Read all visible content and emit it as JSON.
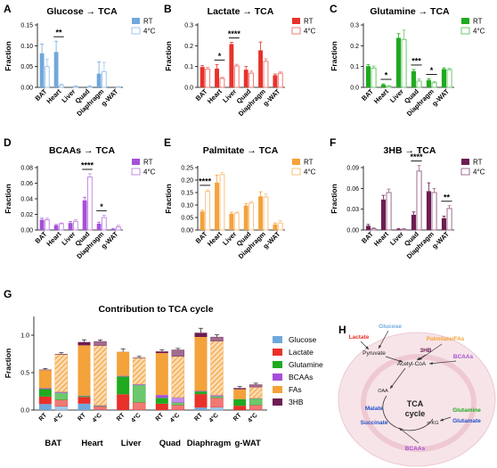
{
  "colors": {
    "glucose": "#6fa8dc",
    "lactate": "#e8312a",
    "glutamine": "#1faa1f",
    "bcaas": "#a64fd9",
    "fas": "#f4a23a",
    "hb": "#6d1d52"
  },
  "rt_label": "RT",
  "cold_label": "4°C",
  "tissues": [
    "BAT",
    "Heart",
    "Liver",
    "Quad",
    "Diaphragm",
    "g-WAT"
  ],
  "chart_data": [
    {
      "letter": "A",
      "title": "Glucose → TCA",
      "type": "bar",
      "color_key": "glucose",
      "ylabel": "Fraction",
      "ylim": [
        0,
        0.15
      ],
      "yticks": [
        "0.00",
        "0.05",
        "0.10",
        "0.15"
      ],
      "rt": [
        0.082,
        0.085,
        0,
        0,
        0.033,
        0
      ],
      "rt_err": [
        0.022,
        0.026,
        0,
        0,
        0.028,
        0
      ],
      "cold": [
        0.05,
        0.005,
        0.002,
        0.002,
        0.038,
        0.001
      ],
      "cold_err": [
        0.018,
        0.003,
        0.002,
        0.002,
        0.022,
        0.001
      ],
      "sig": [
        {
          "index": 1,
          "label": "**"
        }
      ]
    },
    {
      "letter": "B",
      "title": "Lactate → TCA",
      "type": "bar",
      "color_key": "lactate",
      "ylabel": "Fraction",
      "ylim": [
        0,
        0.3
      ],
      "yticks": [
        "0.0",
        "0.1",
        "0.2",
        "0.3"
      ],
      "rt": [
        0.098,
        0.09,
        0.208,
        0.085,
        0.178,
        0.058
      ],
      "rt_err": [
        0.007,
        0.02,
        0.008,
        0.015,
        0.04,
        0.006
      ],
      "cold": [
        0.088,
        0.043,
        0.103,
        0.068,
        0.125,
        0.068
      ],
      "cold_err": [
        0.008,
        0.005,
        0.008,
        0.01,
        0.012,
        0.006
      ],
      "sig": [
        {
          "index": 1,
          "label": "*"
        },
        {
          "index": 2,
          "label": "****"
        }
      ]
    },
    {
      "letter": "C",
      "title": "Glutamine → TCA",
      "type": "bar",
      "color_key": "glutamine",
      "ylabel": "Fraction",
      "ylim": [
        0,
        0.3
      ],
      "yticks": [
        "0.0",
        "0.1",
        "0.2",
        "0.3"
      ],
      "rt": [
        0.102,
        0.013,
        0.238,
        0.078,
        0.035,
        0.088
      ],
      "rt_err": [
        0.007,
        0.004,
        0.02,
        0.008,
        0.006,
        0.006
      ],
      "cold": [
        0.093,
        0.006,
        0.23,
        0.03,
        0.022,
        0.085
      ],
      "cold_err": [
        0.01,
        0.002,
        0.045,
        0.01,
        0.005,
        0.006
      ],
      "sig": [
        {
          "index": 1,
          "label": "*"
        },
        {
          "index": 3,
          "label": "***"
        },
        {
          "index": 4,
          "label": "*"
        }
      ]
    },
    {
      "letter": "D",
      "title": "BCAAs → TCA",
      "type": "bar",
      "color_key": "bcaas",
      "ylabel": "Fraction",
      "ylim": [
        0,
        0.08
      ],
      "yticks": [
        "0.00",
        "0.02",
        "0.04",
        "0.06",
        "0.08"
      ],
      "rt": [
        0.013,
        0.006,
        0.009,
        0.038,
        0.008,
        0.001
      ],
      "rt_err": [
        0.002,
        0.001,
        0.002,
        0.004,
        0.002,
        0.001
      ],
      "cold": [
        0.013,
        0.008,
        0.011,
        0.068,
        0.016,
        0.004
      ],
      "cold_err": [
        0.002,
        0.001,
        0.002,
        0.004,
        0.003,
        0.002
      ],
      "sig": [
        {
          "index": 3,
          "label": "****"
        },
        {
          "index": 4,
          "label": "*"
        }
      ]
    },
    {
      "letter": "E",
      "title": "Palmitate → TCA",
      "type": "bar",
      "color_key": "fas",
      "ylabel": "Fraction",
      "ylim": [
        0,
        0.25
      ],
      "yticks": [
        "0.00",
        "0.05",
        "0.10",
        "0.15",
        "0.20",
        "0.25"
      ],
      "rt": [
        0.074,
        0.19,
        0.065,
        0.098,
        0.135,
        0.022
      ],
      "rt_err": [
        0.005,
        0.03,
        0.006,
        0.008,
        0.018,
        0.006
      ],
      "cold": [
        0.155,
        0.222,
        0.068,
        0.108,
        0.132,
        0.028
      ],
      "cold_err": [
        0.006,
        0.008,
        0.004,
        0.006,
        0.012,
        0.01
      ],
      "sig": [
        {
          "index": 0,
          "label": "****"
        }
      ]
    },
    {
      "letter": "F",
      "title": "3HB → TCA",
      "type": "bar",
      "color_key": "hb",
      "ylabel": "Fraction",
      "ylim": [
        0,
        0.09
      ],
      "yticks": [
        "0.00",
        "0.03",
        "0.06",
        "0.09"
      ],
      "rt": [
        0.006,
        0.044,
        0.001,
        0.022,
        0.056,
        0.017
      ],
      "rt_err": [
        0.002,
        0.006,
        0.001,
        0.004,
        0.012,
        0.003
      ],
      "cold": [
        0.002,
        0.054,
        0.001,
        0.085,
        0.054,
        0.031
      ],
      "cold_err": [
        0.001,
        0.005,
        0.001,
        0.008,
        0.006,
        0.004
      ],
      "sig": [
        {
          "index": 3,
          "label": "****"
        },
        {
          "index": 5,
          "label": "**"
        }
      ]
    },
    {
      "letter": "G",
      "title": "Contribution to TCA cycle",
      "type": "bar",
      "stacked": true,
      "ylabel": "Fraction",
      "ylim": [
        0,
        1.25
      ],
      "yticks": [
        "0.0",
        "0.5",
        "1.0"
      ],
      "legend": [
        "Glucose",
        "Lactate",
        "Glutamine",
        "BCAAs",
        "FAs",
        "3HB"
      ],
      "legend_keys": [
        "glucose",
        "lactate",
        "glutamine",
        "bcaas",
        "fas",
        "hb"
      ],
      "bar_labels": [
        "RT",
        "4°C"
      ],
      "stacks_rt": [
        [
          0.08,
          0.1,
          0.1,
          0.013,
          0.24,
          0.007
        ],
        [
          0.085,
          0.09,
          0.013,
          0.006,
          0.67,
          0.044
        ],
        [
          0,
          0.21,
          0.238,
          0.009,
          0.32,
          0.001
        ],
        [
          0,
          0.085,
          0.078,
          0.038,
          0.56,
          0.022
        ],
        [
          0.033,
          0.18,
          0.035,
          0.008,
          0.72,
          0.056
        ],
        [
          0,
          0.058,
          0.088,
          0.001,
          0.13,
          0.017
        ]
      ],
      "stacks_cold": [
        [
          0.05,
          0.088,
          0.093,
          0.013,
          0.5,
          0.002
        ],
        [
          0.005,
          0.043,
          0.006,
          0.008,
          0.8,
          0.054
        ],
        [
          0.002,
          0.103,
          0.23,
          0.011,
          0.35,
          0.001
        ],
        [
          0.002,
          0.068,
          0.03,
          0.068,
          0.55,
          0.085
        ],
        [
          0.038,
          0.125,
          0.022,
          0.016,
          0.72,
          0.054
        ],
        [
          0.001,
          0.068,
          0.085,
          0.004,
          0.15,
          0.031
        ]
      ],
      "totals_err": [
        [
          0.015,
          0.02
        ],
        [
          0.03,
          0.02
        ],
        [
          0.04,
          0.02
        ],
        [
          0.02,
          0.02
        ],
        [
          0.06,
          0.03
        ],
        [
          0.02,
          0.02
        ]
      ]
    }
  ],
  "diagram": {
    "letter": "H",
    "glucose": "Glucose",
    "lactate": "Lactate",
    "palmitate": "Palmitate/FAs",
    "pyruvate": "Pyruvate",
    "hb": "3HB",
    "bcaas_top": "BCAAs",
    "acetyl": "Acetyl-CoA",
    "oaa": "OAA",
    "tca1": "TCA",
    "tca2": "cycle",
    "malate": "Malate",
    "succinate": "Succinate",
    "akg": "α-KG",
    "glutamine": "Glutamine",
    "glutamate": "Glutamate",
    "bcaas_bottom": "BCAAs"
  }
}
